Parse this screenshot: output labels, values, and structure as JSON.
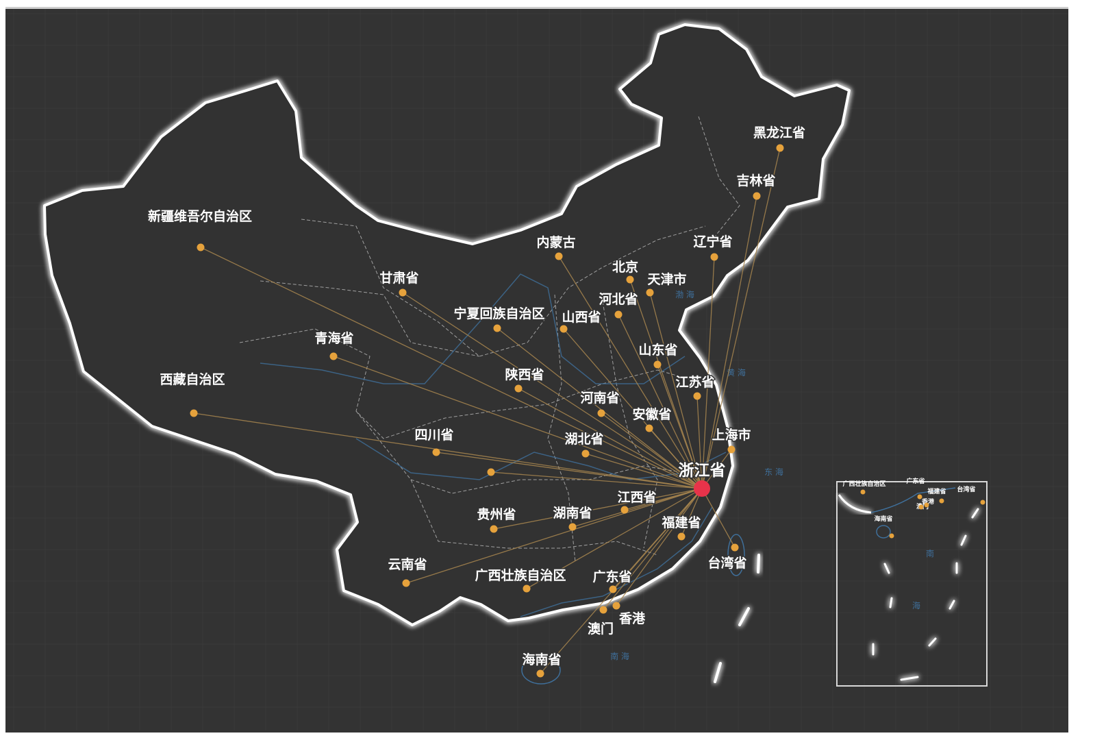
{
  "map": {
    "target": "浙江省",
    "colors": {
      "background": "#333333",
      "border": "#ffffff",
      "line": "#a8864f",
      "dot": "#e6a23c",
      "target": "#e8334a",
      "water": "#3f6f9a"
    },
    "provinces": [
      "新疆维吾尔自治区",
      "西藏自治区",
      "青海省",
      "甘肃省",
      "宁夏回族自治区",
      "内蒙古",
      "北京",
      "天津市",
      "河北省",
      "山西省",
      "辽宁省",
      "吉林省",
      "黑龙江省",
      "山东省",
      "江苏省",
      "陕西省",
      "河南省",
      "安徽省",
      "上海市",
      "湖北省",
      "四川省",
      "",
      "浙江省",
      "江西省",
      "贵州省",
      "湖南省",
      "福建省",
      "台湾省",
      "云南省",
      "广西壮族自治区",
      "广东省",
      "香港",
      "澳门",
      "海南省"
    ],
    "sea_labels": [
      "渤 海",
      "黄 海",
      "东 海",
      "南 海"
    ],
    "inset_labels": [
      "广西壮族自治区",
      "广东省",
      "福建省",
      "台湾省",
      "澳门",
      "香港",
      "海南省",
      "南",
      "海"
    ]
  }
}
